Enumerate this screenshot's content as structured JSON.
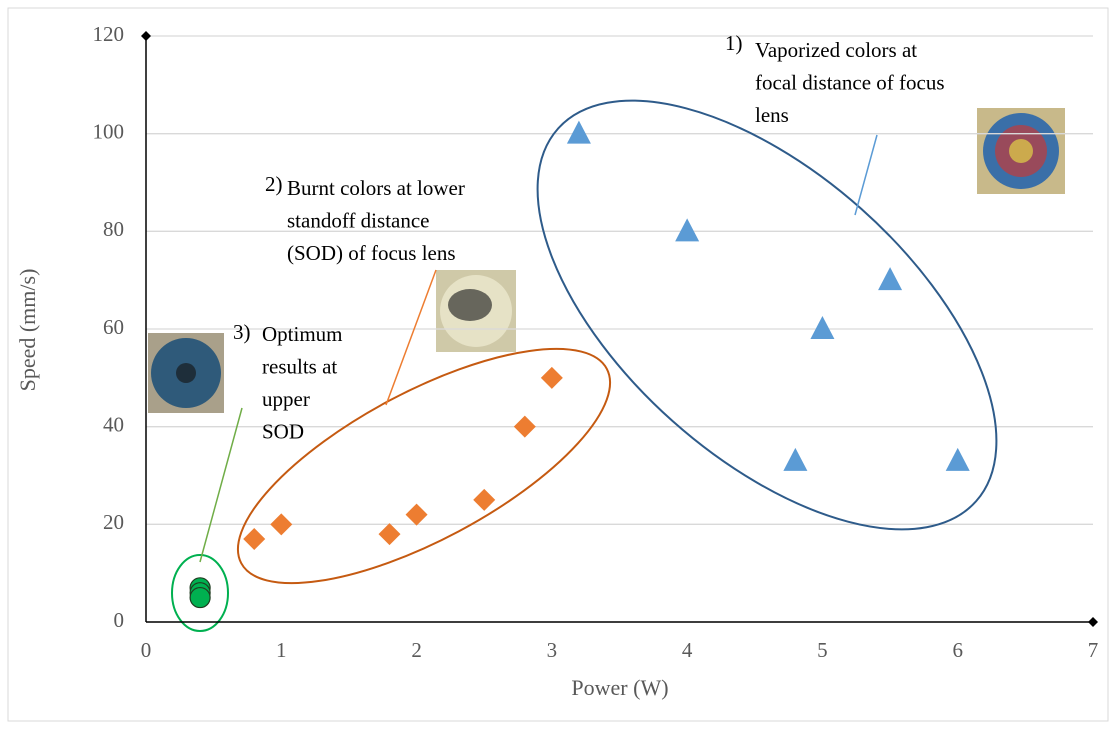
{
  "chart_data": {
    "type": "scatter",
    "x_label": "Power (W)",
    "y_label": "Speed (mm/s)",
    "xlim": [
      0,
      7
    ],
    "xticks": [
      0,
      1,
      2,
      3,
      4,
      5,
      6,
      7
    ],
    "ylim": [
      0,
      120
    ],
    "yticks": [
      0,
      20,
      40,
      60,
      80,
      100,
      120
    ],
    "grid": true,
    "series": [
      {
        "color": "#5b9bd5",
        "marker": "triangle",
        "x": [
          3.2,
          4,
          5.5,
          5,
          4.8,
          6
        ],
        "values": [
          100,
          80,
          70,
          60,
          33,
          33
        ]
      },
      {
        "color": "#ed7d31",
        "marker": "diamond",
        "x": [
          0.8,
          1,
          1.8,
          2,
          2.5,
          2.8,
          3
        ],
        "values": [
          17,
          20,
          18,
          22,
          25,
          40,
          50
        ]
      },
      {
        "color": "#00b050",
        "marker": "circle",
        "x": [
          0.4,
          0.4,
          0.4
        ],
        "values": [
          7,
          6,
          5
        ]
      }
    ],
    "annotations": [
      {
        "number": "1)",
        "lines": [
          "Vaporized colors at",
          "focal distance of focus",
          "lens"
        ]
      },
      {
        "number": "2)",
        "lines": [
          "Burnt colors at lower",
          "standoff distance",
          "(SOD) of focus lens"
        ]
      },
      {
        "number": "3)",
        "lines": [
          "Optimum",
          "results at",
          "upper",
          "SOD"
        ]
      }
    ]
  }
}
